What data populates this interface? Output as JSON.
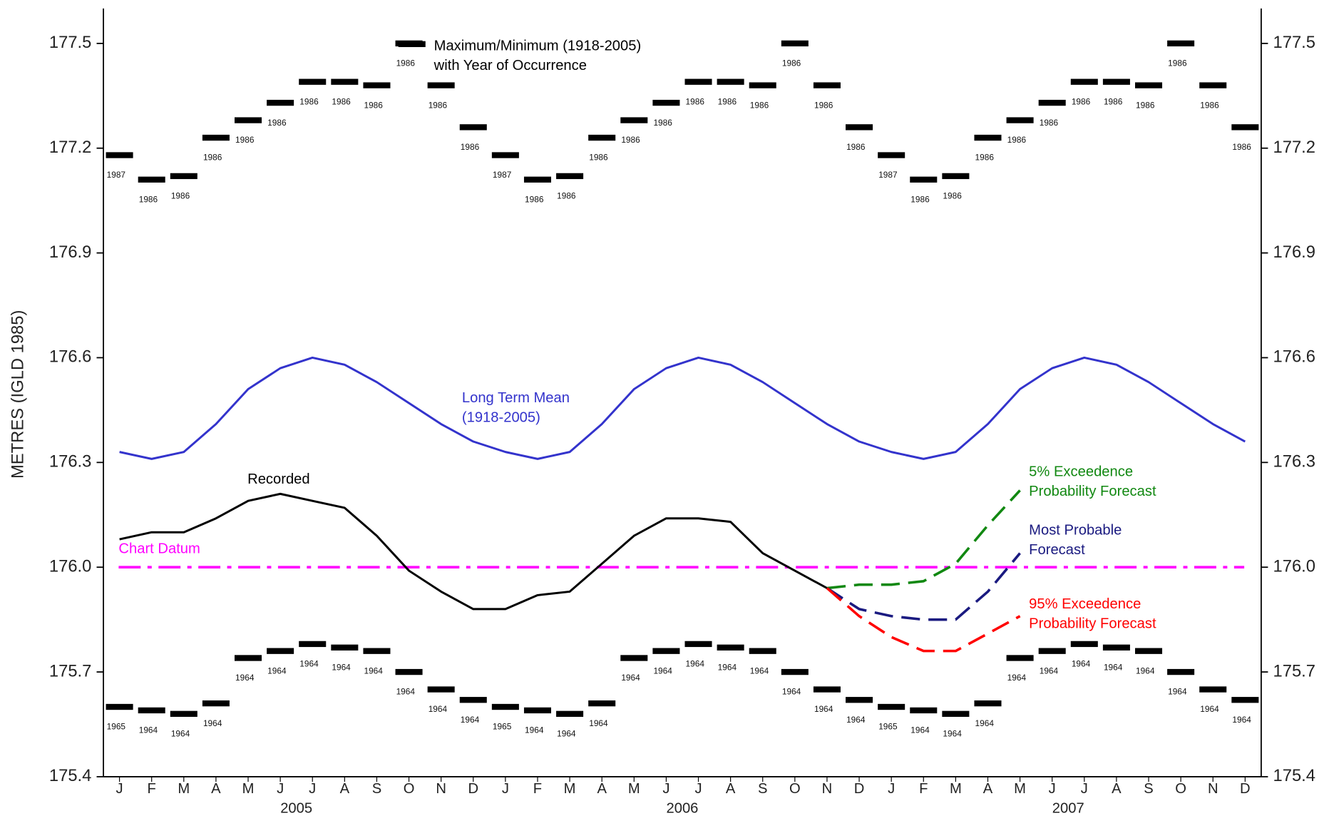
{
  "chart_data": {
    "type": "line",
    "y_label": "METRES (IGLD 1985)",
    "categories": [
      "J",
      "F",
      "M",
      "A",
      "M",
      "J",
      "J",
      "A",
      "S",
      "O",
      "N",
      "D",
      "J",
      "F",
      "M",
      "A",
      "M",
      "J",
      "J",
      "A",
      "S",
      "O",
      "N",
      "D",
      "J",
      "F",
      "M",
      "A",
      "M",
      "J",
      "J",
      "A",
      "S",
      "O",
      "N",
      "D"
    ],
    "year_labels": [
      "2005",
      "2006",
      "2007"
    ],
    "ylim": [
      175.4,
      177.6
    ],
    "yticks": [
      175.4,
      175.7,
      {
        "value": 176,
        "label": "176.0"
      },
      176.3,
      176.6,
      176.9,
      177.2,
      177.5
    ],
    "grid": false,
    "reference_lines": [
      {
        "value": 176,
        "label": "Chart Datum",
        "color": "#ff00ff"
      }
    ],
    "series": [
      {
        "kind": "marker",
        "label_lines": [
          "Maximum/Minimum (1918-2005)",
          "with Year of Occurrence"
        ],
        "color": "#000000",
        "values": [
          177.18,
          177.11,
          177.12,
          177.23,
          177.28,
          177.33,
          177.39,
          177.39,
          177.38,
          177.5,
          177.38,
          177.26,
          177.18,
          177.11,
          177.12,
          177.23,
          177.28,
          177.33,
          177.39,
          177.39,
          177.38,
          177.5,
          177.38,
          177.26,
          177.18,
          177.11,
          177.12,
          177.23,
          177.28,
          177.33,
          177.39,
          177.39,
          177.38,
          177.5,
          177.38,
          177.26
        ],
        "year_labels": [
          1987,
          1986,
          1986,
          1986,
          1986,
          1986,
          1986,
          1986,
          1986,
          1986,
          1986,
          1986,
          1987,
          1986,
          1986,
          1986,
          1986,
          1986,
          1986,
          1986,
          1986,
          1986,
          1986,
          1986,
          1987,
          1986,
          1986,
          1986,
          1986,
          1986,
          1986,
          1986,
          1986,
          1986,
          1986,
          1986
        ]
      },
      {
        "kind": "marker",
        "color": "#000000",
        "values": [
          175.6,
          175.59,
          175.58,
          175.61,
          175.74,
          175.76,
          175.78,
          175.77,
          175.76,
          175.7,
          175.65,
          175.62,
          175.6,
          175.59,
          175.58,
          175.61,
          175.74,
          175.76,
          175.78,
          175.77,
          175.76,
          175.7,
          175.65,
          175.62,
          175.6,
          175.59,
          175.58,
          175.61,
          175.74,
          175.76,
          175.78,
          175.77,
          175.76,
          175.7,
          175.65,
          175.62
        ],
        "year_labels": [
          1965,
          1964,
          1964,
          1964,
          1964,
          1964,
          1964,
          1964,
          1964,
          1964,
          1964,
          1964,
          1965,
          1964,
          1964,
          1964,
          1964,
          1964,
          1964,
          1964,
          1964,
          1964,
          1964,
          1964,
          1965,
          1964,
          1964,
          1964,
          1964,
          1964,
          1964,
          1964,
          1964,
          1964,
          1964,
          1964
        ]
      },
      {
        "kind": "line",
        "label_lines": [
          "Long Term Mean",
          "(1918-2005)"
        ],
        "color": "#3333cc",
        "values": [
          176.33,
          176.31,
          176.33,
          176.41,
          176.51,
          176.57,
          176.6,
          176.58,
          176.53,
          176.47,
          176.41,
          176.36,
          176.33,
          176.31,
          176.33,
          176.41,
          176.51,
          176.57,
          176.6,
          176.58,
          176.53,
          176.47,
          176.41,
          176.36,
          176.33,
          176.31,
          176.33,
          176.41,
          176.51,
          176.57,
          176.6,
          176.58,
          176.53,
          176.47,
          176.41,
          176.36
        ]
      },
      {
        "kind": "line",
        "label_lines": [
          "Recorded"
        ],
        "color": "#000000",
        "values": [
          176.08,
          176.1,
          176.1,
          176.14,
          176.19,
          176.21,
          176.19,
          176.17,
          176.09,
          175.99,
          175.93,
          175.88,
          175.88,
          175.92,
          175.93,
          176.01,
          176.09,
          176.14,
          176.14,
          176.13,
          176.04,
          175.99,
          175.94,
          null,
          null,
          null,
          null,
          null,
          null,
          null,
          null,
          null,
          null,
          null,
          null,
          null
        ]
      },
      {
        "kind": "line",
        "dashed": true,
        "label_lines": [
          "5% Exceedence",
          "Probability Forecast"
        ],
        "color": "#118811",
        "values": [
          null,
          null,
          null,
          null,
          null,
          null,
          null,
          null,
          null,
          null,
          null,
          null,
          null,
          null,
          null,
          null,
          null,
          null,
          null,
          null,
          null,
          null,
          175.94,
          175.95,
          175.95,
          175.96,
          176.01,
          176.12,
          176.22,
          null,
          null,
          null,
          null,
          null,
          null,
          null
        ]
      },
      {
        "kind": "line",
        "dashed": true,
        "label_lines": [
          "Most Probable",
          "Forecast"
        ],
        "color": "#1a1a80",
        "values": [
          null,
          null,
          null,
          null,
          null,
          null,
          null,
          null,
          null,
          null,
          null,
          null,
          null,
          null,
          null,
          null,
          null,
          null,
          null,
          null,
          null,
          null,
          175.94,
          175.88,
          175.86,
          175.85,
          175.85,
          175.93,
          176.04,
          null,
          null,
          null,
          null,
          null,
          null,
          null
        ]
      },
      {
        "kind": "line",
        "dashed": true,
        "label_lines": [
          "95% Exceedence",
          "Probability Forecast"
        ],
        "color": "#ff0000",
        "values": [
          null,
          null,
          null,
          null,
          null,
          null,
          null,
          null,
          null,
          null,
          null,
          null,
          null,
          null,
          null,
          null,
          null,
          null,
          null,
          null,
          null,
          null,
          175.94,
          175.86,
          175.8,
          175.76,
          175.76,
          175.81,
          175.86,
          null,
          null,
          null,
          null,
          null,
          null,
          null
        ]
      }
    ]
  }
}
